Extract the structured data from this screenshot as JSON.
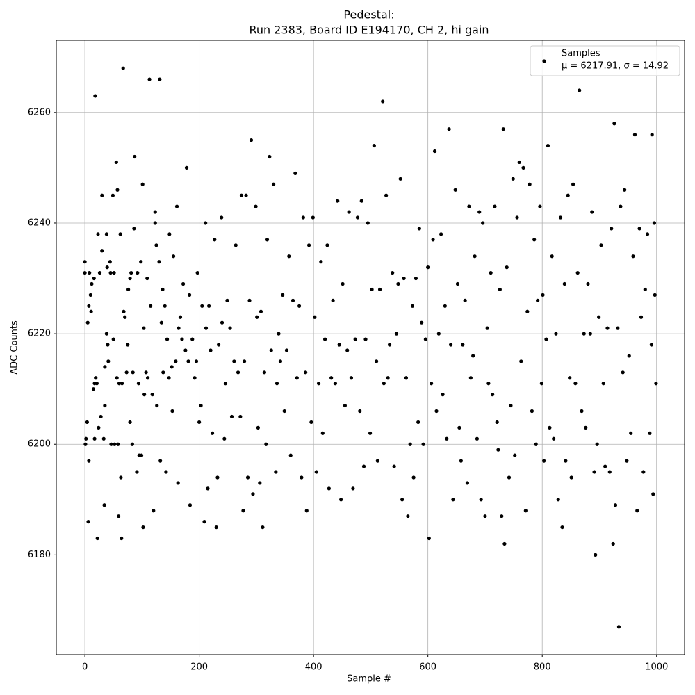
{
  "chart_data": {
    "type": "scatter",
    "title": [
      "Pedestal:",
      "Run 2383, Board ID E194170, CH 2, hi gain"
    ],
    "x_label": "Sample #",
    "y_label": "ADC Counts",
    "legend_location": "upper right",
    "legend_stats": "μ = 6217.91, σ = 14.92",
    "grid": true,
    "xlim": [
      -49.95,
      1048.95
    ],
    "ylim": [
      6161.95,
      6273.05
    ],
    "xticks": [
      0,
      200,
      400,
      600,
      800,
      1000
    ],
    "yticks": [
      6180,
      6200,
      6220,
      6240,
      6260
    ],
    "series": [
      {
        "name": "Samples",
        "color": "#000000",
        "x": [
          0,
          0,
          1,
          2,
          4,
          5,
          6,
          7,
          7,
          8,
          10,
          11,
          12,
          15,
          16,
          17,
          17,
          18,
          19,
          21,
          22,
          23,
          24,
          26,
          28,
          30,
          30,
          33,
          34,
          35,
          35,
          38,
          38,
          39,
          40,
          41,
          44,
          45,
          46,
          49,
          50,
          51,
          52,
          55,
          56,
          57,
          58,
          59,
          60,
          62,
          63,
          64,
          65,
          67,
          68,
          70,
          73,
          75,
          76,
          79,
          79,
          81,
          83,
          84,
          86,
          87,
          91,
          92,
          94,
          95,
          98,
          99,
          101,
          102,
          103,
          104,
          107,
          109,
          110,
          113,
          115,
          118,
          120,
          123,
          123,
          125,
          126,
          130,
          131,
          132,
          134,
          136,
          137,
          140,
          142,
          144,
          147,
          148,
          152,
          153,
          155,
          159,
          161,
          163,
          164,
          167,
          170,
          172,
          176,
          178,
          181,
          183,
          184,
          188,
          192,
          195,
          197,
          200,
          203,
          205,
          209,
          211,
          212,
          215,
          217,
          220,
          223,
          227,
          230,
          232,
          234,
          239,
          240,
          244,
          246,
          249,
          254,
          257,
          261,
          264,
          268,
          272,
          274,
          277,
          279,
          282,
          285,
          288,
          291,
          294,
          299,
          301,
          303,
          306,
          308,
          311,
          314,
          317,
          319,
          323,
          326,
          330,
          334,
          336,
          339,
          342,
          346,
          349,
          353,
          357,
          360,
          364,
          368,
          371,
          375,
          379,
          382,
          386,
          388,
          392,
          396,
          399,
          402,
          405,
          409,
          413,
          416,
          420,
          424,
          427,
          431,
          434,
          438,
          442,
          445,
          448,
          451,
          455,
          459,
          462,
          466,
          469,
          473,
          477,
          481,
          484,
          488,
          491,
          495,
          499,
          502,
          506,
          510,
          512,
          516,
          521,
          523,
          527,
          530,
          533,
          538,
          541,
          545,
          548,
          552,
          555,
          558,
          562,
          565,
          569,
          573,
          575,
          579,
          583,
          585,
          589,
          592,
          596,
          600,
          602,
          606,
          609,
          612,
          615,
          619,
          623,
          626,
          630,
          633,
          637,
          640,
          644,
          648,
          652,
          655,
          658,
          661,
          665,
          669,
          672,
          675,
          679,
          682,
          686,
          690,
          693,
          696,
          700,
          704,
          706,
          710,
          713,
          717,
          721,
          723,
          726,
          729,
          732,
          734,
          738,
          742,
          745,
          749,
          752,
          756,
          760,
          763,
          767,
          771,
          774,
          778,
          782,
          786,
          789,
          792,
          796,
          799,
          801,
          803,
          807,
          810,
          813,
          817,
          820,
          824,
          828,
          832,
          835,
          839,
          841,
          845,
          848,
          851,
          854,
          858,
          862,
          865,
          869,
          873,
          876,
          880,
          884,
          887,
          891,
          893,
          896,
          899,
          903,
          907,
          910,
          914,
          918,
          921,
          924,
          926,
          928,
          932,
          934,
          937,
          941,
          944,
          948,
          952,
          955,
          959,
          962,
          966,
          970,
          973,
          977,
          980,
          984,
          988,
          991,
          992,
          994,
          996,
          997,
          999
        ],
        "values": [
          6233,
          6231,
          6200,
          6201,
          6204,
          6222,
          6186,
          6225,
          6197,
          6231,
          6227,
          6224,
          6229,
          6210,
          6230,
          6211,
          6201,
          6263,
          6212,
          6211,
          6183,
          6238,
          6203,
          6231,
          6205,
          6245,
          6235,
          6201,
          6189,
          6207,
          6214,
          6238,
          6220,
          6232,
          6218,
          6215,
          6233,
          6231,
          6200,
          6245,
          6219,
          6231,
          6200,
          6251,
          6212,
          6246,
          6200,
          6187,
          6211,
          6238,
          6194,
          6183,
          6211,
          6268,
          6224,
          6223,
          6213,
          6218,
          6228,
          6230,
          6204,
          6231,
          6200,
          6213,
          6239,
          6252,
          6195,
          6231,
          6211,
          6198,
          6233,
          6198,
          6247,
          6185,
          6221,
          6209,
          6213,
          6230,
          6212,
          6266,
          6225,
          6209,
          6188,
          6242,
          6240,
          6236,
          6207,
          6233,
          6266,
          6197,
          6222,
          6228,
          6213,
          6225,
          6195,
          6219,
          6212,
          6238,
          6214,
          6206,
          6234,
          6215,
          6243,
          6193,
          6221,
          6223,
          6219,
          6229,
          6217,
          6250,
          6215,
          6227,
          6189,
          6219,
          6212,
          6215,
          6231,
          6204,
          6207,
          6225,
          6186,
          6240,
          6221,
          6192,
          6225,
          6217,
          6202,
          6237,
          6185,
          6194,
          6218,
          6241,
          6222,
          6201,
          6211,
          6226,
          6221,
          6205,
          6215,
          6236,
          6213,
          6205,
          6245,
          6188,
          6215,
          6245,
          6194,
          6226,
          6255,
          6191,
          6243,
          6223,
          6203,
          6193,
          6224,
          6185,
          6213,
          6200,
          6237,
          6252,
          6217,
          6247,
          6195,
          6211,
          6220,
          6215,
          6227,
          6206,
          6217,
          6234,
          6198,
          6226,
          6249,
          6212,
          6225,
          6194,
          6241,
          6213,
          6188,
          6236,
          6204,
          6241,
          6223,
          6195,
          6211,
          6233,
          6202,
          6219,
          6236,
          6192,
          6212,
          6226,
          6211,
          6244,
          6218,
          6190,
          6229,
          6207,
          6217,
          6242,
          6212,
          6192,
          6219,
          6241,
          6206,
          6244,
          6196,
          6219,
          6240,
          6202,
          6228,
          6254,
          6215,
          6197,
          6228,
          6262,
          6211,
          6245,
          6212,
          6218,
          6231,
          6196,
          6220,
          6229,
          6248,
          6190,
          6230,
          6212,
          6187,
          6200,
          6225,
          6194,
          6230,
          6204,
          6239,
          6222,
          6200,
          6219,
          6232,
          6183,
          6211,
          6237,
          6253,
          6206,
          6220,
          6238,
          6209,
          6225,
          6201,
          6257,
          6218,
          6190,
          6246,
          6229,
          6203,
          6197,
          6218,
          6226,
          6193,
          6243,
          6212,
          6216,
          6234,
          6201,
          6242,
          6190,
          6240,
          6187,
          6221,
          6211,
          6231,
          6209,
          6243,
          6204,
          6199,
          6228,
          6187,
          6257,
          6182,
          6232,
          6194,
          6207,
          6248,
          6198,
          6241,
          6251,
          6215,
          6250,
          6188,
          6224,
          6247,
          6206,
          6237,
          6200,
          6226,
          6243,
          6211,
          6227,
          6197,
          6219,
          6254,
          6203,
          6234,
          6201,
          6220,
          6190,
          6241,
          6185,
          6229,
          6197,
          6245,
          6212,
          6194,
          6247,
          6211,
          6231,
          6264,
          6206,
          6220,
          6203,
          6229,
          6220,
          6242,
          6195,
          6180,
          6200,
          6223,
          6236,
          6211,
          6196,
          6221,
          6195,
          6239,
          6182,
          6258,
          6189,
          6221,
          6167,
          6243,
          6213,
          6246,
          6197,
          6216,
          6202,
          6234,
          6256,
          6188,
          6239,
          6223,
          6195,
          6228,
          6238,
          6202,
          6218,
          6256,
          6191,
          6240,
          6227,
          6211
        ]
      }
    ]
  }
}
